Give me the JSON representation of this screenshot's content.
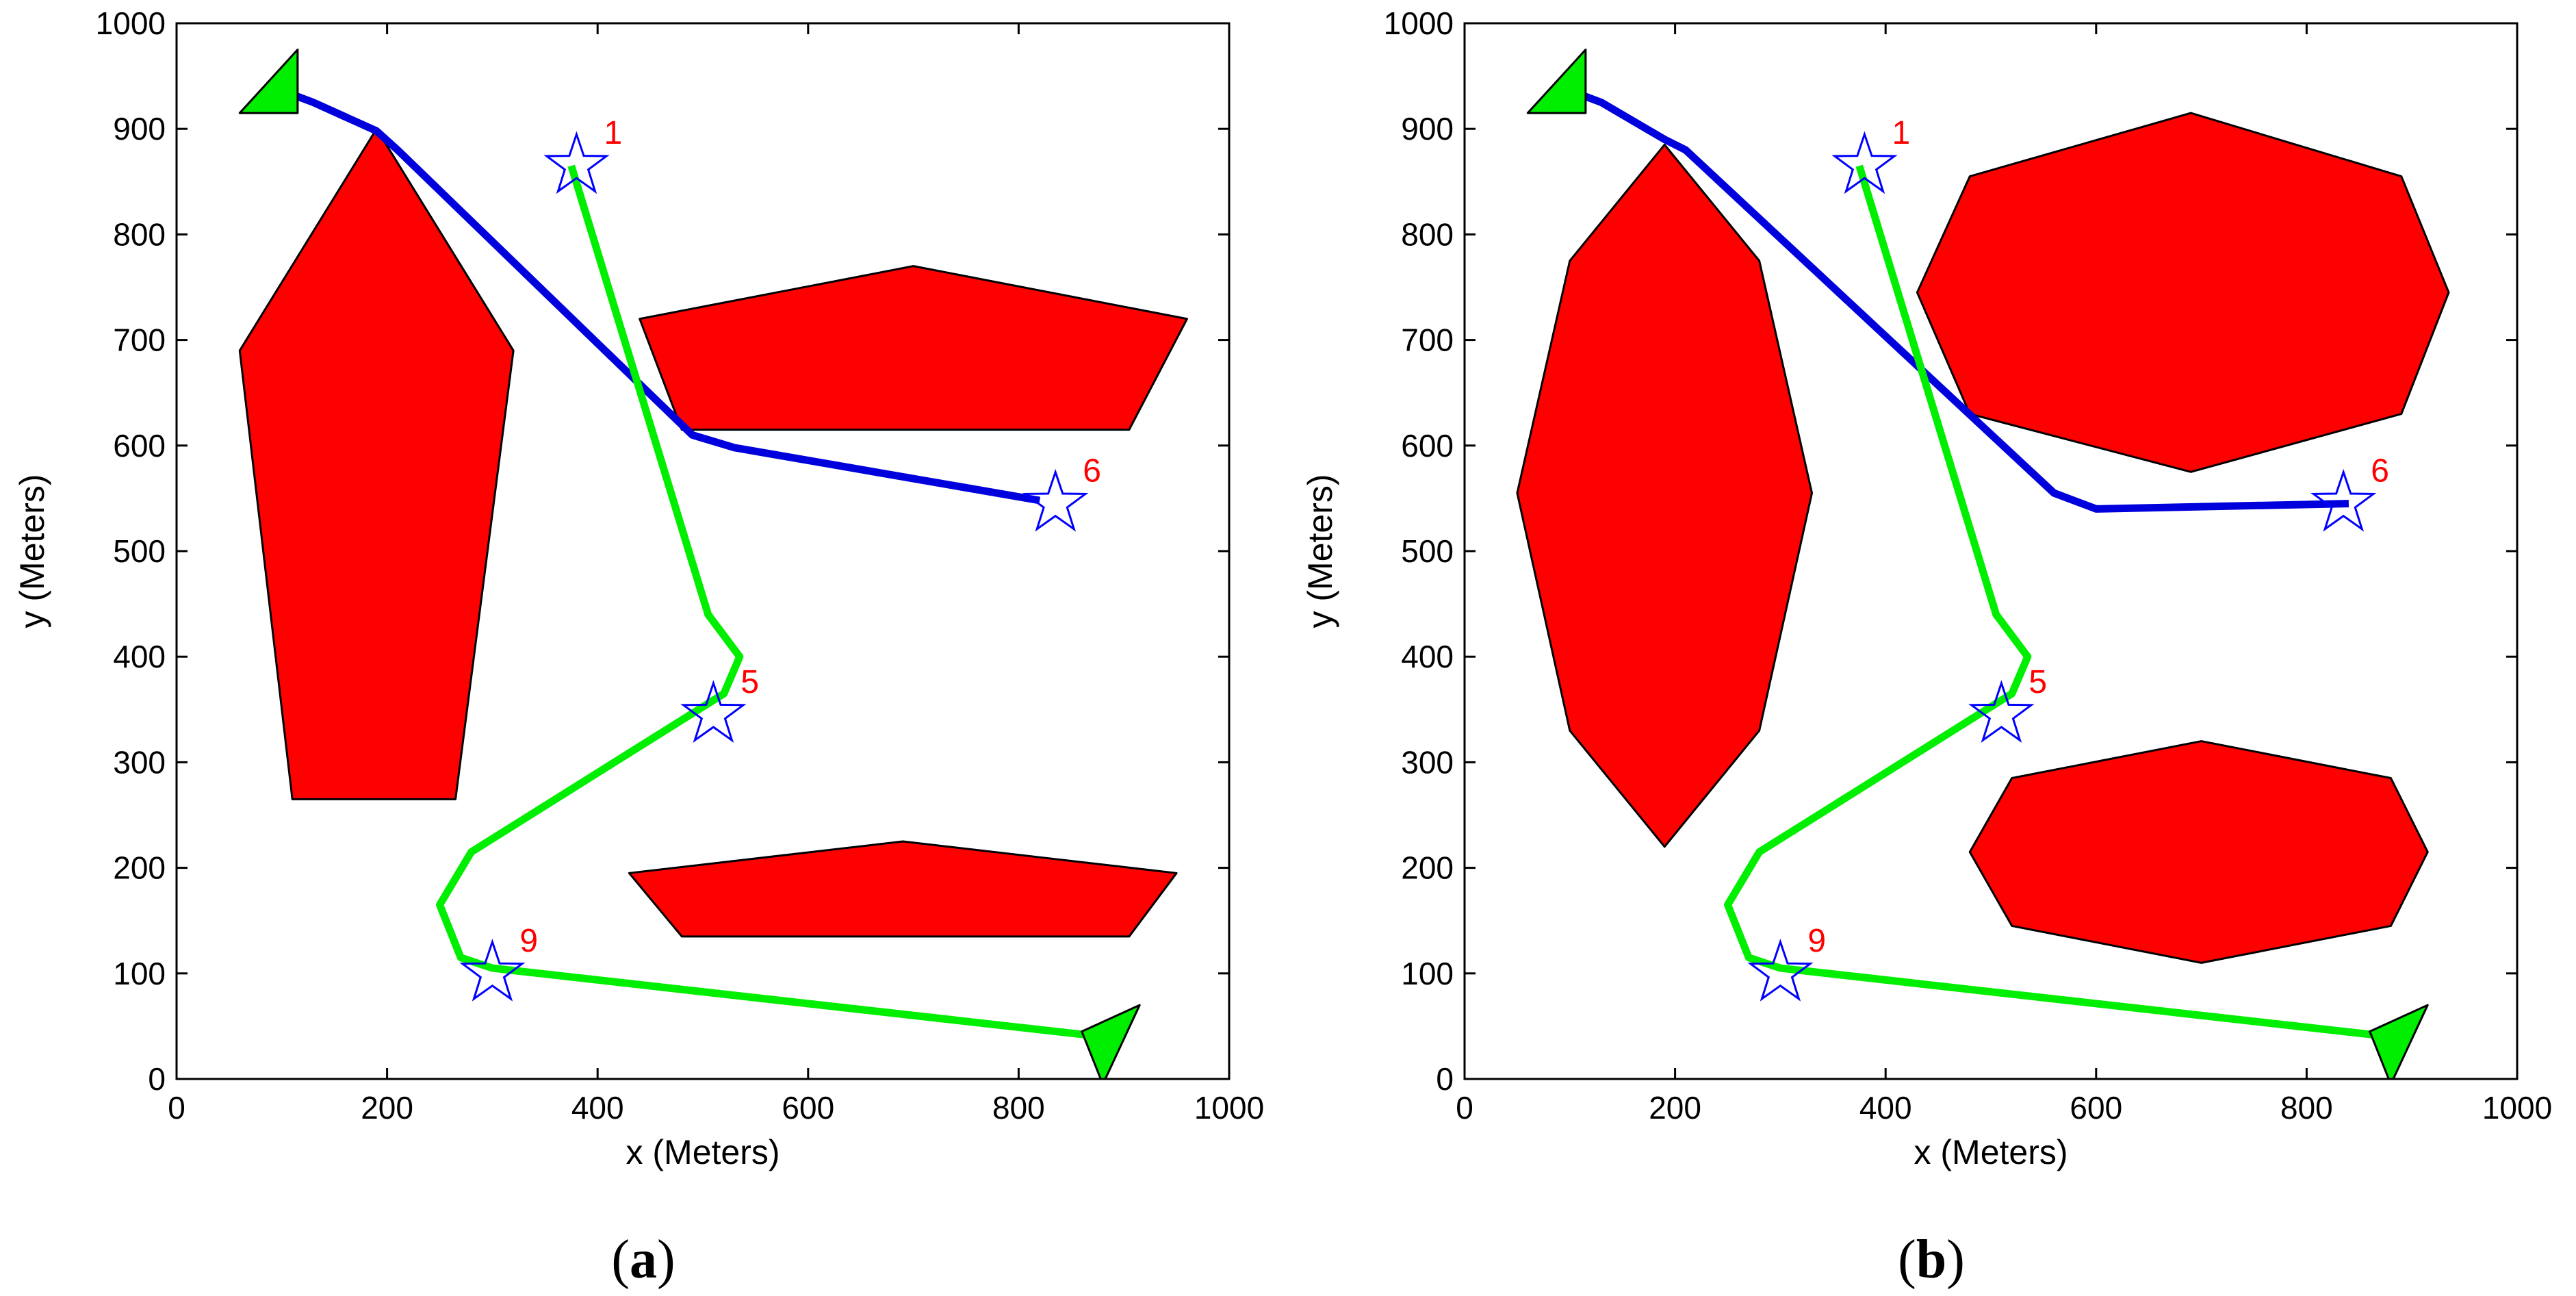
{
  "colors": {
    "obstacle_fill": "#ff0000",
    "obstacle_stroke": "#000000",
    "path_a": "#0000dd",
    "path_b": "#00ee00",
    "waypoint_star": "#0000ff",
    "waypoint_label": "#ff0000",
    "vehicle_fill": "#00ee00",
    "frame": "#000000"
  },
  "chart_data": [
    {
      "type": "line",
      "subtitle_open": "(",
      "subtitle_letter": "a",
      "subtitle_close": ")",
      "xlabel": "x (Meters)",
      "ylabel": "y (Meters)",
      "xlim": [
        0,
        1000
      ],
      "ylim": [
        0,
        1000
      ],
      "xticks": [
        "0",
        "200",
        "400",
        "600",
        "800",
        "1000"
      ],
      "yticks": [
        "0",
        "100",
        "200",
        "300",
        "400",
        "500",
        "600",
        "700",
        "800",
        "900",
        "1000"
      ],
      "obstacles": [
        {
          "name": "pentagon-left",
          "points": [
            [
              190,
              900
            ],
            [
              320,
              690
            ],
            [
              265,
              265
            ],
            [
              110,
              265
            ],
            [
              60,
              690
            ]
          ]
        },
        {
          "name": "pentagon-top-right",
          "points": [
            [
              440,
              720
            ],
            [
              700,
              770
            ],
            [
              960,
              720
            ],
            [
              905,
              615
            ],
            [
              480,
              615
            ]
          ]
        },
        {
          "name": "pentagon-bottom-right",
          "points": [
            [
              430,
              195
            ],
            [
              690,
              225
            ],
            [
              950,
              195
            ],
            [
              905,
              135
            ],
            [
              480,
              135
            ]
          ]
        }
      ],
      "series": [
        {
          "name": "vehicle-1-path",
          "color": "path_a",
          "points": [
            [
              90,
              940
            ],
            [
              130,
              925
            ],
            [
              190,
              898
            ],
            [
              210,
              880
            ],
            [
              490,
              610
            ],
            [
              530,
              598
            ],
            [
              820,
              548
            ]
          ]
        },
        {
          "name": "vehicle-2-path",
          "color": "path_b",
          "points": [
            [
              375,
              865
            ],
            [
              505,
              440
            ],
            [
              535,
              400
            ],
            [
              520,
              365
            ],
            [
              280,
              215
            ],
            [
              250,
              165
            ],
            [
              270,
              115
            ],
            [
              300,
              105
            ],
            [
              880,
              40
            ]
          ]
        }
      ],
      "vehicles": [
        {
          "name": "vehicle-1-start",
          "points": [
            [
              60,
              915
            ],
            [
              115,
              915
            ],
            [
              115,
              975
            ]
          ]
        },
        {
          "name": "vehicle-2-end",
          "points": [
            [
              860,
              45
            ],
            [
              915,
              70
            ],
            [
              880,
              -5
            ]
          ]
        }
      ],
      "waypoints": [
        {
          "label": "1",
          "x": 380,
          "y": 865
        },
        {
          "label": "5",
          "x": 510,
          "y": 345
        },
        {
          "label": "6",
          "x": 835,
          "y": 545
        },
        {
          "label": "9",
          "x": 300,
          "y": 100
        }
      ]
    },
    {
      "type": "line",
      "subtitle_open": "(",
      "subtitle_letter": "b",
      "subtitle_close": ")",
      "xlabel": "x (Meters)",
      "ylabel": "y (Meters)",
      "xlim": [
        0,
        1000
      ],
      "ylim": [
        0,
        1000
      ],
      "xticks": [
        "0",
        "200",
        "400",
        "600",
        "800",
        "1000"
      ],
      "yticks": [
        "0",
        "100",
        "200",
        "300",
        "400",
        "500",
        "600",
        "700",
        "800",
        "900",
        "1000"
      ],
      "obstacles": [
        {
          "name": "hexagon-left",
          "points": [
            [
              190,
              885
            ],
            [
              280,
              775
            ],
            [
              330,
              555
            ],
            [
              280,
              330
            ],
            [
              190,
              220
            ],
            [
              100,
              330
            ],
            [
              50,
              555
            ],
            [
              100,
              775
            ]
          ]
        },
        {
          "name": "octagon-top-right",
          "points": [
            [
              480,
              855
            ],
            [
              690,
              915
            ],
            [
              890,
              855
            ],
            [
              935,
              745
            ],
            [
              890,
              630
            ],
            [
              690,
              575
            ],
            [
              480,
              630
            ],
            [
              430,
              745
            ]
          ]
        },
        {
          "name": "octagon-bottom-right",
          "points": [
            [
              520,
              285
            ],
            [
              700,
              320
            ],
            [
              880,
              285
            ],
            [
              915,
              215
            ],
            [
              880,
              145
            ],
            [
              700,
              110
            ],
            [
              520,
              145
            ],
            [
              480,
              215
            ]
          ]
        }
      ],
      "series": [
        {
          "name": "vehicle-1-path",
          "color": "path_a",
          "points": [
            [
              90,
              940
            ],
            [
              130,
              925
            ],
            [
              190,
              890
            ],
            [
              210,
              880
            ],
            [
              560,
              555
            ],
            [
              600,
              540
            ],
            [
              840,
              545
            ]
          ]
        },
        {
          "name": "vehicle-2-path",
          "color": "path_b",
          "points": [
            [
              375,
              865
            ],
            [
              505,
              440
            ],
            [
              535,
              400
            ],
            [
              520,
              365
            ],
            [
              280,
              215
            ],
            [
              250,
              165
            ],
            [
              270,
              115
            ],
            [
              300,
              105
            ],
            [
              880,
              40
            ]
          ]
        }
      ],
      "vehicles": [
        {
          "name": "vehicle-1-start",
          "points": [
            [
              60,
              915
            ],
            [
              115,
              915
            ],
            [
              115,
              975
            ]
          ]
        },
        {
          "name": "vehicle-2-end",
          "points": [
            [
              860,
              45
            ],
            [
              915,
              70
            ],
            [
              880,
              -5
            ]
          ]
        }
      ],
      "waypoints": [
        {
          "label": "1",
          "x": 380,
          "y": 865
        },
        {
          "label": "5",
          "x": 510,
          "y": 345
        },
        {
          "label": "6",
          "x": 835,
          "y": 545
        },
        {
          "label": "9",
          "x": 300,
          "y": 100
        }
      ]
    }
  ]
}
